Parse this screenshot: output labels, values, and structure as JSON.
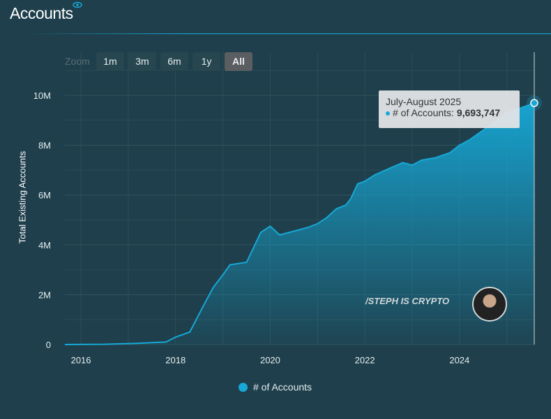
{
  "header": {
    "title": "Accounts",
    "icon": "eye-icon"
  },
  "zoom": {
    "label": "Zoom",
    "buttons": [
      "1m",
      "3m",
      "6m",
      "1y",
      "All"
    ],
    "active": "All"
  },
  "tooltip": {
    "period": "July-August 2025",
    "series_label": "# of Accounts:",
    "value": "9,693,747"
  },
  "watermark": "/STEPH IS CRYPTO",
  "legend": {
    "label": "# of Accounts"
  },
  "colors": {
    "accent": "#17a8d6",
    "background": "#1e3f4b"
  },
  "chart_data": {
    "type": "area",
    "title": "Accounts",
    "ylabel": "Total Existing Accounts",
    "xlabel": "",
    "xlim": [
      2015.66,
      2025.58
    ],
    "ylim": [
      0,
      10800000
    ],
    "x_ticks": [
      "2016",
      "2018",
      "2020",
      "2022",
      "2024"
    ],
    "y_ticks": [
      "0",
      "2M",
      "4M",
      "6M",
      "8M",
      "10M"
    ],
    "series": [
      {
        "name": "# of Accounts",
        "x": [
          2015.66,
          2016.5,
          2017.2,
          2017.8,
          2018.0,
          2018.3,
          2018.6,
          2018.8,
          2019.0,
          2019.15,
          2019.5,
          2019.8,
          2020.0,
          2020.2,
          2020.5,
          2020.8,
          2021.0,
          2021.2,
          2021.4,
          2021.6,
          2021.7,
          2021.85,
          2022.0,
          2022.2,
          2022.5,
          2022.8,
          2023.0,
          2023.2,
          2023.5,
          2023.8,
          2024.0,
          2024.2,
          2024.5,
          2024.8,
          2025.0,
          2025.58
        ],
        "values": [
          0,
          10000,
          50000,
          100000,
          300000,
          500000,
          1600000,
          2300000,
          2800000,
          3200000,
          3300000,
          4500000,
          4750000,
          4400000,
          4550000,
          4700000,
          4850000,
          5100000,
          5450000,
          5600000,
          5850000,
          6450000,
          6550000,
          6800000,
          7050000,
          7300000,
          7200000,
          7400000,
          7500000,
          7700000,
          8000000,
          8200000,
          8600000,
          9000000,
          9300000,
          9693747
        ]
      }
    ],
    "grid": true,
    "legend_position": "bottom-center"
  }
}
